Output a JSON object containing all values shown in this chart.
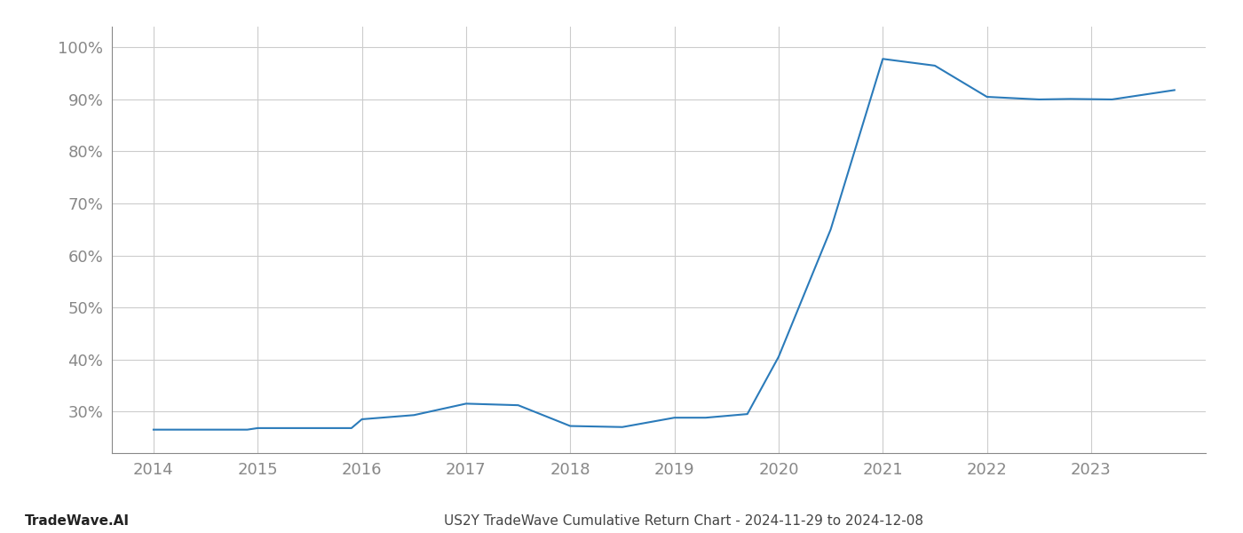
{
  "title": "US2Y TradeWave Cumulative Return Chart - 2024-11-29 to 2024-12-08",
  "watermark": "TradeWave.AI",
  "x_values": [
    2014.0,
    2014.9,
    2015.0,
    2015.9,
    2016.0,
    2016.5,
    2017.0,
    2017.5,
    2018.0,
    2018.5,
    2019.0,
    2019.3,
    2019.7,
    2020.0,
    2020.5,
    2021.0,
    2021.5,
    2022.0,
    2022.5,
    2022.8,
    2023.2,
    2023.8
  ],
  "y_values": [
    0.265,
    0.265,
    0.268,
    0.268,
    0.285,
    0.293,
    0.315,
    0.312,
    0.272,
    0.27,
    0.288,
    0.288,
    0.295,
    0.405,
    0.65,
    0.978,
    0.965,
    0.905,
    0.9,
    0.901,
    0.9,
    0.918
  ],
  "line_color": "#2b7bba",
  "background_color": "#ffffff",
  "grid_color": "#cccccc",
  "ylim": [
    0.22,
    1.04
  ],
  "xlim": [
    2013.6,
    2024.1
  ],
  "yticks": [
    0.3,
    0.4,
    0.5,
    0.6,
    0.7,
    0.8,
    0.9,
    1.0
  ],
  "xticks": [
    2014,
    2015,
    2016,
    2017,
    2018,
    2019,
    2020,
    2021,
    2022,
    2023
  ],
  "title_fontsize": 11,
  "watermark_fontsize": 11,
  "tick_fontsize": 13,
  "axis_label_color": "#888888",
  "title_color": "#444444",
  "watermark_color": "#222222",
  "spine_color": "#888888"
}
